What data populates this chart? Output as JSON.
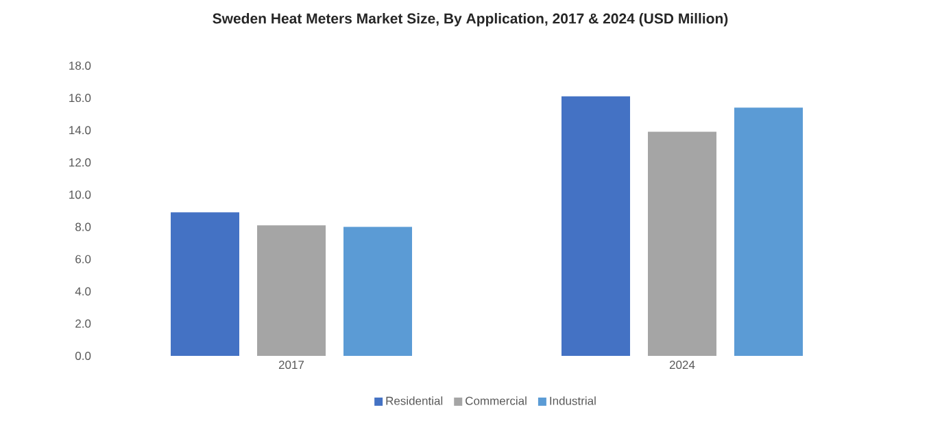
{
  "chart_data": {
    "type": "bar",
    "title": "Sweden Heat Meters Market Size, By Application, 2017 & 2024 (USD Million)",
    "categories": [
      "2017",
      "2024"
    ],
    "series": [
      {
        "name": "Residential",
        "color": "#4472c4",
        "values": [
          8.9,
          16.1
        ]
      },
      {
        "name": "Commercial",
        "color": "#a5a5a5",
        "values": [
          8.1,
          13.9
        ]
      },
      {
        "name": "Industrial",
        "color": "#5b9bd5",
        "values": [
          8.0,
          15.4
        ]
      }
    ],
    "ylim": [
      0,
      18
    ],
    "yticks": [
      {
        "value": 0,
        "label": "0.0"
      },
      {
        "value": 2,
        "label": "2.0"
      },
      {
        "value": 4,
        "label": "4.0"
      },
      {
        "value": 6,
        "label": "6.0"
      },
      {
        "value": 8,
        "label": "8.0"
      },
      {
        "value": 10,
        "label": "10.0"
      },
      {
        "value": 12,
        "label": "12.0"
      },
      {
        "value": 14,
        "label": "14.0"
      },
      {
        "value": 16,
        "label": "16.0"
      },
      {
        "value": 18,
        "label": "18.0"
      }
    ],
    "grid": false,
    "legend": "bottom"
  }
}
